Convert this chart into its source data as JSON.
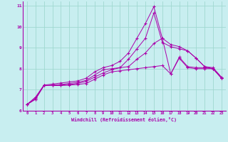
{
  "xlabel": "Windchill (Refroidissement éolien,°C)",
  "background_color": "#c8eef0",
  "grid_color": "#a0d8d0",
  "line_color": "#aa00aa",
  "xlim": [
    -0.5,
    23.5
  ],
  "ylim": [
    6.0,
    11.2
  ],
  "yticks": [
    6,
    7,
    8,
    9,
    10,
    11
  ],
  "xticks": [
    0,
    1,
    2,
    3,
    4,
    5,
    6,
    7,
    8,
    9,
    10,
    11,
    12,
    13,
    14,
    15,
    16,
    17,
    18,
    19,
    20,
    21,
    22,
    23
  ],
  "series": [
    [
      6.3,
      6.55,
      7.2,
      7.2,
      7.2,
      7.22,
      7.25,
      7.3,
      7.5,
      7.7,
      7.85,
      7.9,
      7.95,
      8.0,
      8.05,
      8.1,
      8.15,
      7.75,
      8.5,
      8.05,
      8.0,
      8.0,
      8.0,
      7.55
    ],
    [
      6.3,
      6.55,
      7.2,
      7.2,
      7.22,
      7.25,
      7.3,
      7.4,
      7.6,
      7.8,
      7.95,
      8.05,
      8.1,
      8.45,
      8.75,
      9.2,
      9.45,
      7.75,
      8.55,
      8.1,
      8.05,
      8.05,
      8.0,
      7.55
    ],
    [
      6.3,
      6.6,
      7.2,
      7.22,
      7.25,
      7.3,
      7.35,
      7.45,
      7.7,
      7.95,
      8.0,
      8.05,
      8.45,
      8.95,
      9.45,
      10.65,
      9.25,
      9.05,
      8.95,
      8.85,
      8.5,
      8.1,
      8.0,
      7.55
    ],
    [
      6.3,
      6.65,
      7.22,
      7.27,
      7.32,
      7.37,
      7.42,
      7.55,
      7.85,
      8.05,
      8.15,
      8.35,
      8.75,
      9.45,
      10.15,
      10.95,
      9.45,
      9.15,
      9.05,
      8.85,
      8.5,
      8.1,
      8.05,
      7.6
    ]
  ]
}
